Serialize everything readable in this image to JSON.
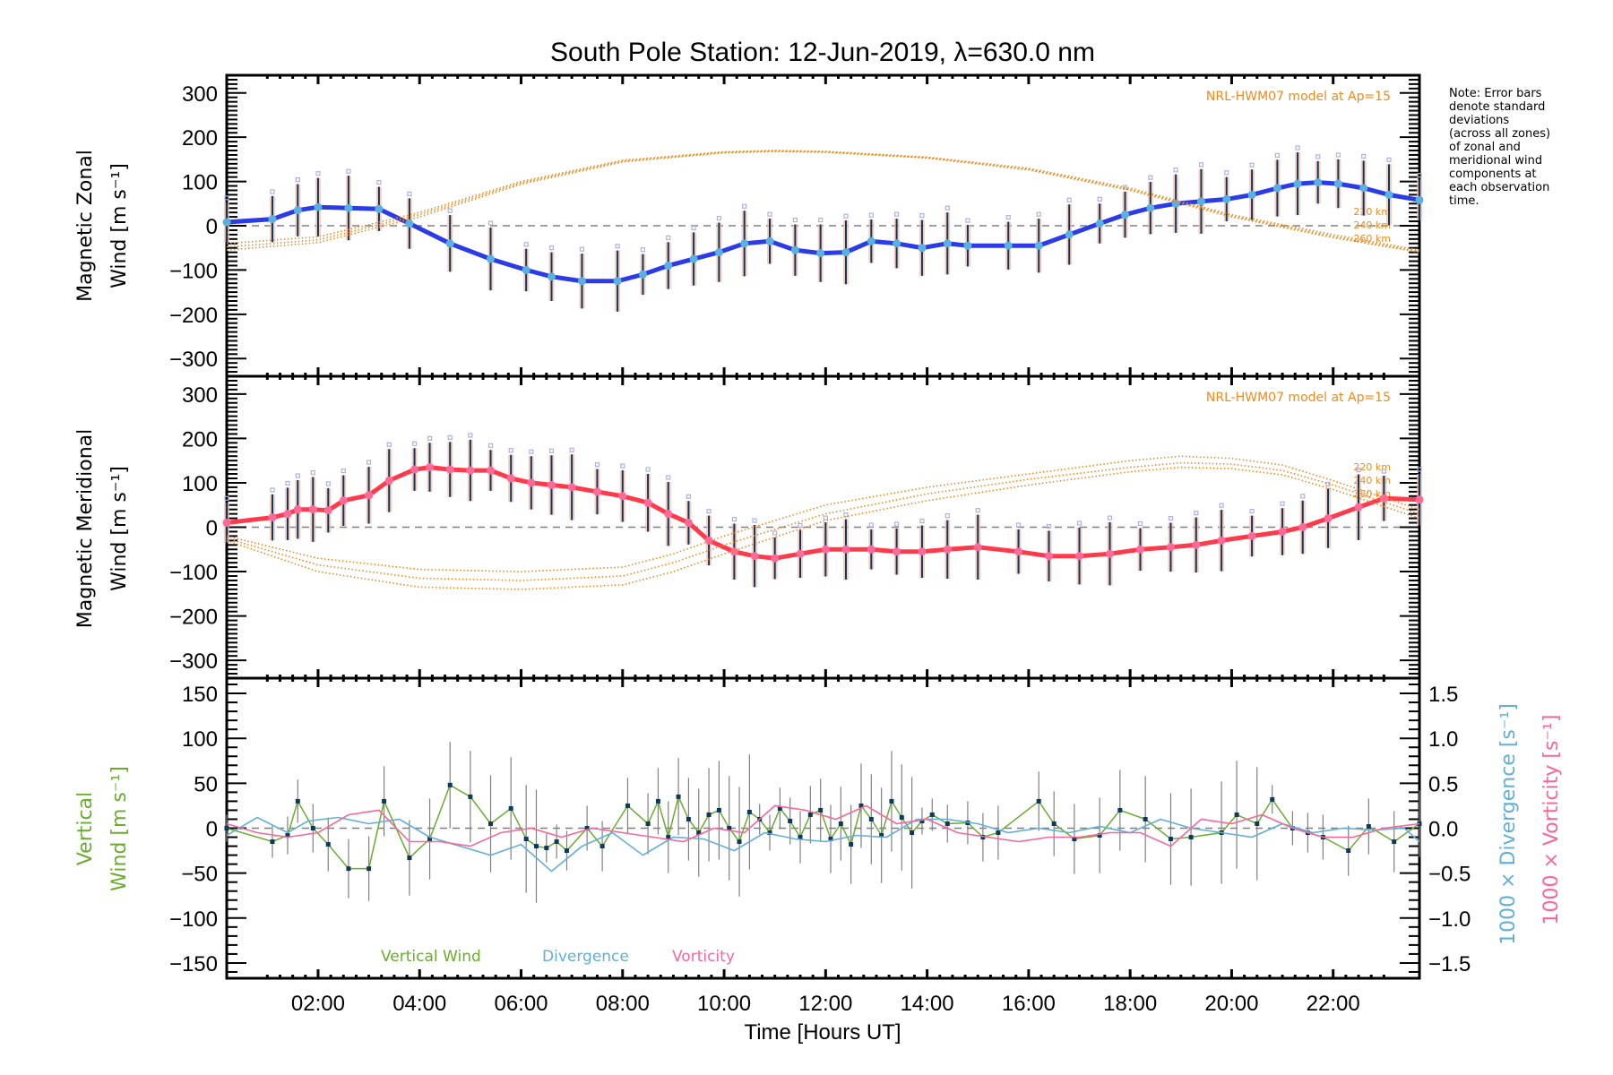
{
  "chart_data": [
    {
      "panel": "zonal",
      "type": "line",
      "title": "South Pole Station: 12-Jun-2019, λ=630.0 nm",
      "xlabel": "",
      "ylabel_line1": "Magnetic Zonal",
      "ylabel_line2": "Wind [m s⁻¹]",
      "xlim": [
        0.2,
        23.7
      ],
      "ylim": [
        -340,
        340
      ],
      "yticks": [
        300,
        200,
        100,
        0,
        -100,
        -200,
        -300
      ],
      "ytick_labels": [
        "300",
        "200",
        "100",
        "0",
        "−100",
        "−200",
        "−300"
      ],
      "zero_line": "dashed",
      "model_annotation": "NRL-HWM07 model at Ap=15",
      "model_altitudes": [
        "220 km",
        "240 km",
        "260 km"
      ],
      "series": [
        {
          "name": "Mean zonal wind",
          "color": "#2b3be8",
          "x": [
            0.2,
            1.1,
            1.6,
            2.0,
            2.6,
            3.2,
            3.8,
            4.6,
            5.4,
            6.1,
            6.6,
            7.2,
            7.9,
            8.4,
            8.9,
            9.4,
            9.9,
            10.4,
            10.9,
            11.4,
            11.9,
            12.4,
            12.9,
            13.4,
            13.9,
            14.4,
            14.8,
            15.6,
            16.2,
            16.8,
            17.4,
            17.9,
            18.4,
            18.9,
            19.4,
            19.9,
            20.4,
            20.9,
            21.3,
            21.7,
            22.1,
            22.6,
            23.1,
            23.7
          ],
          "y": [
            8,
            15,
            35,
            42,
            40,
            38,
            5,
            -40,
            -75,
            -100,
            -115,
            -125,
            -125,
            -110,
            -90,
            -75,
            -60,
            -40,
            -35,
            -55,
            -62,
            -60,
            -35,
            -40,
            -50,
            -40,
            -45,
            -45,
            -45,
            -20,
            5,
            25,
            40,
            50,
            55,
            60,
            70,
            85,
            95,
            98,
            95,
            85,
            70,
            58
          ]
        },
        {
          "name": "NRL-HWM07 220 km",
          "color": "#f08a1c",
          "style": "dotted",
          "x": [
            0.2,
            2,
            4,
            6,
            8,
            10,
            11,
            12,
            14,
            16,
            18,
            19,
            20,
            22,
            23.7
          ],
          "y": [
            -40,
            -25,
            30,
            100,
            148,
            167,
            170,
            168,
            155,
            130,
            85,
            55,
            25,
            -20,
            -55
          ]
        },
        {
          "name": "NRL-HWM07 240 km",
          "color": "#f08a1c",
          "style": "dotted",
          "x": [
            0.2,
            2,
            4,
            6,
            8,
            10,
            11,
            12,
            14,
            16,
            18,
            19,
            20,
            22,
            23.7
          ],
          "y": [
            -48,
            -32,
            25,
            97,
            146,
            166,
            169,
            167,
            154,
            128,
            82,
            52,
            22,
            -24,
            -58
          ]
        },
        {
          "name": "NRL-HWM07 260 km",
          "color": "#f08a1c",
          "style": "dotted",
          "x": [
            0.2,
            2,
            4,
            6,
            8,
            10,
            11,
            12,
            14,
            16,
            18,
            19,
            20,
            22,
            23.7
          ],
          "y": [
            -55,
            -38,
            20,
            94,
            144,
            165,
            168,
            166,
            153,
            126,
            80,
            50,
            20,
            -27,
            -60
          ]
        }
      ]
    },
    {
      "panel": "meridional",
      "type": "line",
      "ylabel_line1": "Magnetic Meridional",
      "ylabel_line2": "Wind [m s⁻¹]",
      "xlim": [
        0.2,
        23.7
      ],
      "ylim": [
        -340,
        340
      ],
      "yticks": [
        300,
        200,
        100,
        0,
        -100,
        -200,
        -300
      ],
      "ytick_labels": [
        "300",
        "200",
        "100",
        "0",
        "−100",
        "−200",
        "−300"
      ],
      "zero_line": "dashed",
      "model_annotation": "NRL-HWM07 model at Ap=15",
      "model_altitudes": [
        "220 km",
        "240 km",
        "260 km"
      ],
      "series": [
        {
          "name": "Mean meridional wind",
          "color": "#ff3a4a",
          "x": [
            0.2,
            1.1,
            1.4,
            1.6,
            1.9,
            2.2,
            2.5,
            3.0,
            3.4,
            3.9,
            4.2,
            4.6,
            5.0,
            5.4,
            5.8,
            6.2,
            6.6,
            7.0,
            7.5,
            8.0,
            8.5,
            8.9,
            9.3,
            9.7,
            10.2,
            10.6,
            11.0,
            11.5,
            12.0,
            12.4,
            12.9,
            13.4,
            13.9,
            14.4,
            15.0,
            15.8,
            16.4,
            17.0,
            17.6,
            18.2,
            18.8,
            19.3,
            19.8,
            20.4,
            21.0,
            21.4,
            21.9,
            22.5,
            23.0,
            23.7
          ],
          "y": [
            10,
            22,
            30,
            40,
            40,
            38,
            60,
            72,
            105,
            130,
            135,
            130,
            128,
            128,
            110,
            100,
            95,
            90,
            80,
            70,
            55,
            30,
            10,
            -30,
            -55,
            -65,
            -70,
            -60,
            -50,
            -50,
            -50,
            -55,
            -55,
            -50,
            -45,
            -55,
            -65,
            -65,
            -60,
            -50,
            -45,
            -40,
            -30,
            -20,
            -10,
            0,
            20,
            45,
            65,
            62
          ]
        },
        {
          "name": "NRL-HWM07 220 km",
          "color": "#f08a1c",
          "style": "dotted",
          "x": [
            0.2,
            2,
            4,
            6,
            8,
            9,
            10,
            12,
            14,
            16,
            18,
            19,
            20,
            21,
            22,
            23.7
          ],
          "y": [
            -20,
            -70,
            -95,
            -100,
            -90,
            -60,
            -20,
            50,
            90,
            120,
            150,
            160,
            155,
            140,
            105,
            40
          ]
        },
        {
          "name": "NRL-HWM07 240 km",
          "color": "#f08a1c",
          "style": "dotted",
          "x": [
            0.2,
            2,
            4,
            6,
            8,
            9,
            10,
            12,
            14,
            16,
            18,
            19,
            20,
            21,
            22,
            23.7
          ],
          "y": [
            -25,
            -85,
            -115,
            -120,
            -110,
            -80,
            -40,
            30,
            75,
            108,
            135,
            145,
            142,
            128,
            95,
            30
          ]
        },
        {
          "name": "NRL-HWM07 260 km",
          "color": "#f08a1c",
          "style": "dotted",
          "x": [
            0.2,
            2,
            4,
            6,
            8,
            9,
            10,
            12,
            14,
            16,
            18,
            19,
            20,
            21,
            22,
            23.7
          ],
          "y": [
            -30,
            -100,
            -135,
            -140,
            -130,
            -100,
            -60,
            15,
            60,
            95,
            125,
            135,
            132,
            118,
            85,
            20
          ]
        }
      ]
    },
    {
      "panel": "vertical",
      "type": "line",
      "xlabel": "Time [Hours UT]",
      "ylabel_line1": "Vertical",
      "ylabel_line2": "Wind [m s⁻¹]",
      "ylabel_right1": "1000 × Divergence [s⁻¹]",
      "ylabel_right2": "1000 × Vorticity [s⁻¹]",
      "xlim": [
        0.2,
        23.7
      ],
      "xticks": [
        2,
        4,
        6,
        8,
        10,
        12,
        14,
        16,
        18,
        20,
        22
      ],
      "xtick_labels": [
        "02:00",
        "04:00",
        "06:00",
        "08:00",
        "10:00",
        "12:00",
        "14:00",
        "16:00",
        "18:00",
        "20:00",
        "22:00"
      ],
      "ylim": [
        -167,
        167
      ],
      "yticks": [
        150,
        100,
        50,
        0,
        -50,
        -100,
        -150
      ],
      "ytick_labels": [
        "150",
        "100",
        "50",
        "0",
        "−50",
        "−100",
        "−150"
      ],
      "ylim_right": [
        -1.67,
        1.67
      ],
      "yticks_right": [
        1.5,
        1.0,
        0.5,
        0.0,
        -0.5,
        -1.0,
        -1.5
      ],
      "ytick_labels_right": [
        "1.5",
        "1.0",
        "0.5",
        "0.0",
        "−0.5",
        "−1.0",
        "−1.5"
      ],
      "zero_line": "dashed",
      "legend": [
        {
          "label": "Vertical Wind",
          "color": "#6aad2e"
        },
        {
          "label": "Divergence",
          "color": "#63afd8"
        },
        {
          "label": "Vorticity",
          "color": "#f7679b"
        }
      ],
      "series": [
        {
          "name": "Vertical Wind",
          "color": "#6aad2e",
          "x": [
            0.2,
            1.1,
            1.4,
            1.6,
            1.9,
            2.2,
            2.6,
            3.0,
            3.3,
            3.8,
            4.2,
            4.6,
            5.0,
            5.4,
            5.8,
            6.1,
            6.3,
            6.5,
            6.7,
            6.9,
            7.3,
            7.6,
            8.1,
            8.5,
            8.7,
            8.9,
            9.1,
            9.3,
            9.5,
            9.7,
            9.9,
            10.1,
            10.3,
            10.5,
            10.7,
            10.9,
            11.1,
            11.3,
            11.5,
            11.7,
            11.9,
            12.1,
            12.3,
            12.5,
            12.7,
            12.9,
            13.1,
            13.3,
            13.5,
            13.7,
            13.9,
            14.1,
            14.4,
            14.8,
            15.1,
            15.4,
            16.2,
            16.5,
            16.9,
            17.4,
            17.8,
            18.3,
            18.8,
            19.2,
            19.8,
            20.1,
            20.5,
            20.8,
            21.2,
            21.5,
            21.8,
            22.3,
            22.7,
            23.2,
            23.7
          ],
          "y": [
            0,
            -15,
            -8,
            30,
            0,
            -18,
            -45,
            -45,
            30,
            -33,
            -12,
            48,
            35,
            5,
            22,
            -12,
            -20,
            -22,
            -15,
            -25,
            0,
            -20,
            25,
            5,
            30,
            -10,
            35,
            10,
            -5,
            15,
            20,
            0,
            -15,
            18,
            10,
            -5,
            22,
            8,
            -10,
            15,
            20,
            -12,
            5,
            -18,
            25,
            10,
            -8,
            30,
            12,
            -5,
            8,
            15,
            5,
            6,
            -10,
            -5,
            30,
            5,
            -12,
            -8,
            20,
            10,
            -12,
            -10,
            -5,
            15,
            5,
            32,
            0,
            -5,
            -10,
            -25,
            2,
            -15,
            5
          ]
        },
        {
          "name": "Divergence",
          "color": "#63afd8",
          "x": [
            0.2,
            0.8,
            1.4,
            1.8,
            2.4,
            3.0,
            3.6,
            4.2,
            4.8,
            5.4,
            6.0,
            6.6,
            7.2,
            7.8,
            8.4,
            9.0,
            9.6,
            10.2,
            10.8,
            11.4,
            12.0,
            12.6,
            13.2,
            13.8,
            14.4,
            15.0,
            15.6,
            16.2,
            16.8,
            17.4,
            18.0,
            18.6,
            19.2,
            19.8,
            20.4,
            21.0,
            21.6,
            22.2,
            22.8,
            23.4,
            23.7
          ],
          "y": [
            -0.08,
            0.12,
            -0.05,
            0.08,
            0.12,
            0.05,
            0.1,
            -0.1,
            -0.2,
            -0.3,
            -0.18,
            -0.48,
            -0.2,
            -0.05,
            -0.3,
            -0.1,
            -0.12,
            -0.25,
            -0.05,
            -0.12,
            -0.15,
            -0.08,
            -0.1,
            0.1,
            0.1,
            0.05,
            -0.05,
            0.0,
            -0.05,
            0.02,
            -0.05,
            0.1,
            0.0,
            -0.05,
            -0.1,
            0.05,
            -0.05,
            0.0,
            -0.02,
            0.0,
            -0.15
          ]
        },
        {
          "name": "Vorticity",
          "color": "#f7679b",
          "x": [
            0.2,
            0.8,
            1.4,
            2.0,
            2.6,
            3.2,
            3.8,
            4.4,
            5.0,
            5.6,
            6.2,
            6.8,
            7.4,
            8.0,
            8.6,
            9.2,
            9.8,
            10.4,
            11.0,
            11.6,
            12.2,
            12.8,
            13.4,
            14.0,
            14.6,
            15.2,
            15.8,
            16.4,
            17.0,
            17.6,
            18.2,
            18.8,
            19.4,
            20.0,
            20.6,
            21.2,
            21.8,
            22.4,
            23.0,
            23.7
          ],
          "y": [
            0.05,
            -0.05,
            -0.1,
            -0.05,
            0.15,
            0.2,
            -0.15,
            -0.15,
            -0.2,
            -0.05,
            0.0,
            -0.1,
            0.0,
            -0.05,
            -0.1,
            -0.15,
            0.0,
            -0.05,
            0.25,
            0.2,
            0.1,
            0.25,
            0.05,
            0.1,
            -0.05,
            -0.1,
            -0.15,
            -0.1,
            -0.1,
            -0.05,
            -0.05,
            -0.2,
            0.1,
            0.05,
            0.15,
            0.0,
            -0.1,
            -0.1,
            0.0,
            0.05
          ]
        }
      ]
    }
  ],
  "note_lines": [
    "Note: Error bars",
    "denote standard",
    "deviations",
    "(across all zones)",
    "of zonal and",
    "meridional wind",
    "components at",
    "each observation",
    "time."
  ],
  "colors": {
    "errorbar": "#0e3a5a",
    "model": "#f08a1c",
    "zonal_marker": "#5ab0e0",
    "meridional_marker": "#ff6a9a",
    "scatter": "#b0b0e0",
    "vertical_marker": "#0e3a5a",
    "vertical_errorbar": "#808080"
  }
}
